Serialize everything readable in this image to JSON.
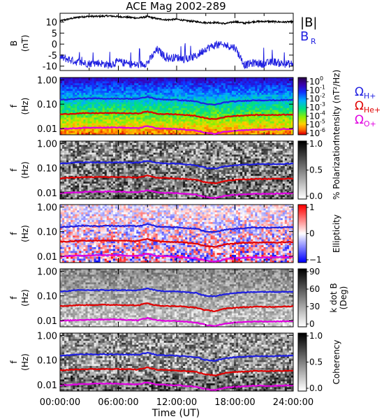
{
  "title": "ACE Mag 2002-289",
  "xlabel": "Time (UT)",
  "colors": {
    "black": "#000000",
    "blue": "#1f1fe0",
    "red": "#e00000",
    "magenta": "#e000e0"
  },
  "chart_data": [
    {
      "type": "line",
      "panel": "field",
      "ylabel_top": "B",
      "ylabel_bottom": "(nT)",
      "ylim": [
        -12,
        14
      ],
      "yticks": [
        "10",
        "5",
        "0",
        "-5",
        "-10"
      ],
      "x": [
        0,
        1,
        2,
        3,
        4,
        5,
        6,
        7,
        8,
        9,
        10,
        11,
        12,
        13,
        14,
        15,
        16,
        17,
        18,
        19,
        20,
        21,
        22,
        23,
        24
      ],
      "series": [
        {
          "name": "|B|",
          "color": "#000000",
          "values": [
            10.5,
            11.5,
            12.3,
            12.6,
            12.6,
            12.8,
            12.5,
            12.2,
            11.8,
            12.5,
            11.5,
            11.0,
            11.3,
            10.6,
            10.2,
            9.7,
            9.8,
            9.3,
            10.2,
            9.5,
            10.2,
            10.3,
            10.2,
            10.0,
            10.2
          ]
        },
        {
          "name": "B_R",
          "color": "#1f1fe0",
          "values": [
            -6.0,
            -7.0,
            -8.5,
            -8.8,
            -8.5,
            -9.5,
            -8.0,
            -9.0,
            -9.5,
            -8.5,
            -2.5,
            -6.5,
            -6.0,
            -7.0,
            -5.5,
            -2.0,
            -0.5,
            -0.5,
            -1.5,
            -9.5,
            -8.5,
            -9.0,
            -8.0,
            -9.0,
            -9.0
          ]
        }
      ],
      "legend": [
        "|B|",
        "B",
        "R"
      ]
    },
    {
      "type": "heatmap",
      "panel": "power",
      "colorbar_label": "Intensity (nT²/Hz)",
      "colorbar_ticks": [
        "10",
        "10",
        "10",
        "10",
        "10",
        "10",
        "10"
      ],
      "colorbar_exponents": [
        "0",
        "-1",
        "-2",
        "-3",
        "-4",
        "-5",
        "-6"
      ],
      "gyro_legend": [
        {
          "text": "Ω",
          "sub": "H+"
        },
        {
          "text": "Ω",
          "sub": "He+"
        },
        {
          "text": "Ω",
          "sub": "O+"
        }
      ],
      "ylabel_top": "f",
      "ylabel_bottom": "(Hz)",
      "yticks": [
        "1.00",
        "0.10",
        "0.01"
      ]
    },
    {
      "type": "heatmap",
      "panel": "polarization",
      "colorbar_label": "% Polarization",
      "colorbar_ticks": [
        "1.0",
        "0.5",
        "0.0"
      ],
      "ylabel_top": "f",
      "ylabel_bottom": "(Hz)",
      "yticks": [
        "1.00",
        "0.10",
        "0.01"
      ]
    },
    {
      "type": "heatmap",
      "panel": "ellipticity",
      "colorbar_label": "Ellipticity",
      "colorbar_ticks": [
        "1",
        "0",
        "−1"
      ],
      "ylabel_top": "f",
      "ylabel_bottom": "(Hz)",
      "yticks": [
        "1.00",
        "0.10",
        "0.01"
      ]
    },
    {
      "type": "heatmap",
      "panel": "kdotb",
      "colorbar_label": "k dot B",
      "colorbar_label2": "(Deg)",
      "colorbar_ticks": [
        "90",
        "60",
        "30",
        "0"
      ],
      "ylabel_top": "f",
      "ylabel_bottom": "(Hz)",
      "yticks": [
        "1.00",
        "0.10",
        "0.01"
      ]
    },
    {
      "type": "heatmap",
      "panel": "coherency",
      "colorbar_label": "Coherency",
      "colorbar_ticks": [
        "1.0",
        "0.5",
        "0.0"
      ],
      "ylabel_top": "f",
      "ylabel_bottom": "(Hz)",
      "yticks": [
        "1.00",
        "0.10",
        "0.01"
      ]
    }
  ],
  "gyro_lines": {
    "x": [
      0,
      2,
      4,
      6,
      8,
      9,
      10,
      12,
      14,
      15,
      16,
      17,
      18,
      20,
      22,
      24
    ],
    "H+": [
      0.15,
      0.17,
      0.17,
      0.17,
      0.165,
      0.2,
      0.16,
      0.15,
      0.13,
      0.1,
      0.095,
      0.12,
      0.13,
      0.145,
      0.145,
      0.15
    ],
    "He+": [
      0.038,
      0.042,
      0.043,
      0.043,
      0.041,
      0.05,
      0.04,
      0.038,
      0.033,
      0.026,
      0.024,
      0.03,
      0.033,
      0.036,
      0.036,
      0.038
    ],
    "O+": [
      0.0095,
      0.0105,
      0.011,
      0.011,
      0.0102,
      0.0125,
      0.01,
      0.0095,
      0.0082,
      0.0066,
      0.006,
      0.0075,
      0.0082,
      0.009,
      0.009,
      0.0095
    ]
  },
  "xticks": [
    "00:00:00",
    "06:00:00",
    "12:00:00",
    "18:00:00",
    "24:00:00"
  ],
  "xlim": [
    0,
    24
  ]
}
